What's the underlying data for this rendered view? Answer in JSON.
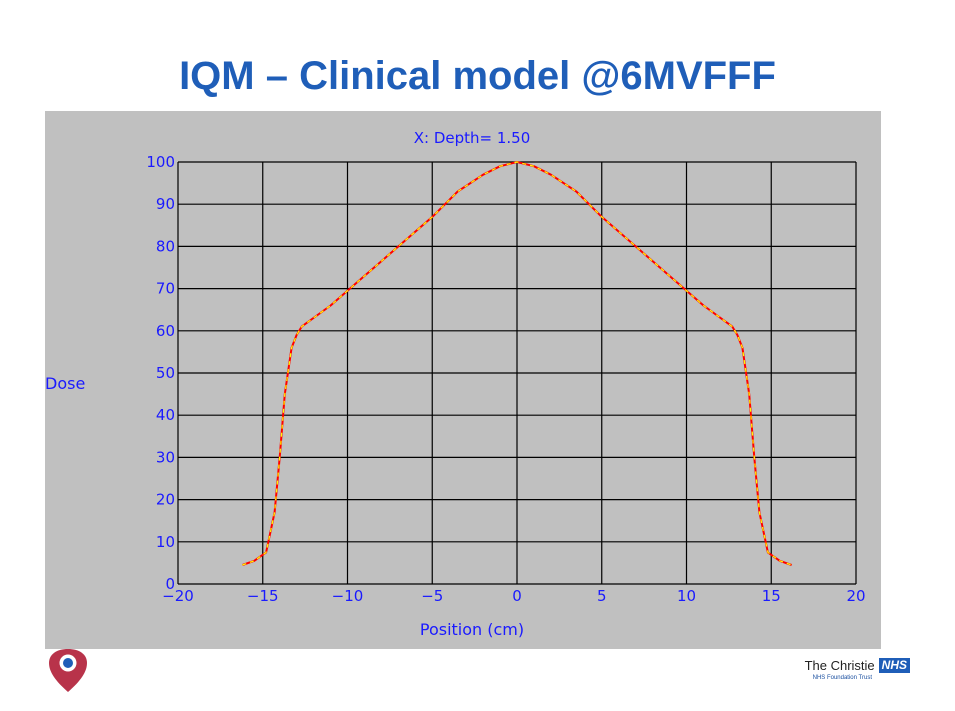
{
  "slide": {
    "title": "IQM – Clinical model @6MVFFF",
    "title_color": "#1f5eb8"
  },
  "chart_data": {
    "type": "line",
    "title": "X: Depth=  1.50",
    "xlabel": "Position (cm)",
    "ylabel": "Dose",
    "xlim": [
      -20,
      20
    ],
    "ylim": [
      0,
      100
    ],
    "xticks": [
      -20,
      -15,
      -10,
      -5,
      0,
      5,
      10,
      15,
      20
    ],
    "yticks": [
      0,
      10,
      20,
      30,
      40,
      50,
      60,
      70,
      80,
      90,
      100
    ],
    "x_tick_labels": [
      "−20",
      "−15",
      "−10",
      "−5",
      "0",
      "5",
      "10",
      "15",
      "20"
    ],
    "y_tick_labels": [
      "0",
      "10",
      "20",
      "30",
      "40",
      "50",
      "60",
      "70",
      "80",
      "90",
      "100"
    ],
    "grid": true,
    "background_color": "#c0c0c0",
    "text_color": "#1a1aff",
    "series": [
      {
        "color": "#ff0000",
        "overlay_color": "#ffff00",
        "x": [
          -16.2,
          -15.5,
          -14.8,
          -14.3,
          -14.0,
          -13.7,
          -13.3,
          -13.0,
          -12.7,
          -11.0,
          -9.0,
          -7.0,
          -5.0,
          -3.5,
          -2.0,
          -1.0,
          0.0,
          1.0,
          2.0,
          3.5,
          5.0,
          7.0,
          9.0,
          11.0,
          12.7,
          13.0,
          13.3,
          13.7,
          14.0,
          14.3,
          14.8,
          15.5,
          16.2
        ],
        "y": [
          4.5,
          5.5,
          7.5,
          17,
          30,
          45,
          56,
          59,
          61,
          66,
          73,
          80,
          87,
          93,
          97,
          99,
          100,
          99,
          97,
          93,
          87,
          80,
          73,
          66,
          61,
          59,
          56,
          45,
          30,
          17,
          7.5,
          5.5,
          4.5
        ]
      }
    ]
  },
  "footer": {
    "brand_name": "The Christie",
    "nhs_label": "NHS",
    "nhs_color": "#1f5eb8",
    "subtitle": "NHS Foundation Trust",
    "heart_color": "#b8334a",
    "heart_icon": "christie-heart-icon"
  }
}
